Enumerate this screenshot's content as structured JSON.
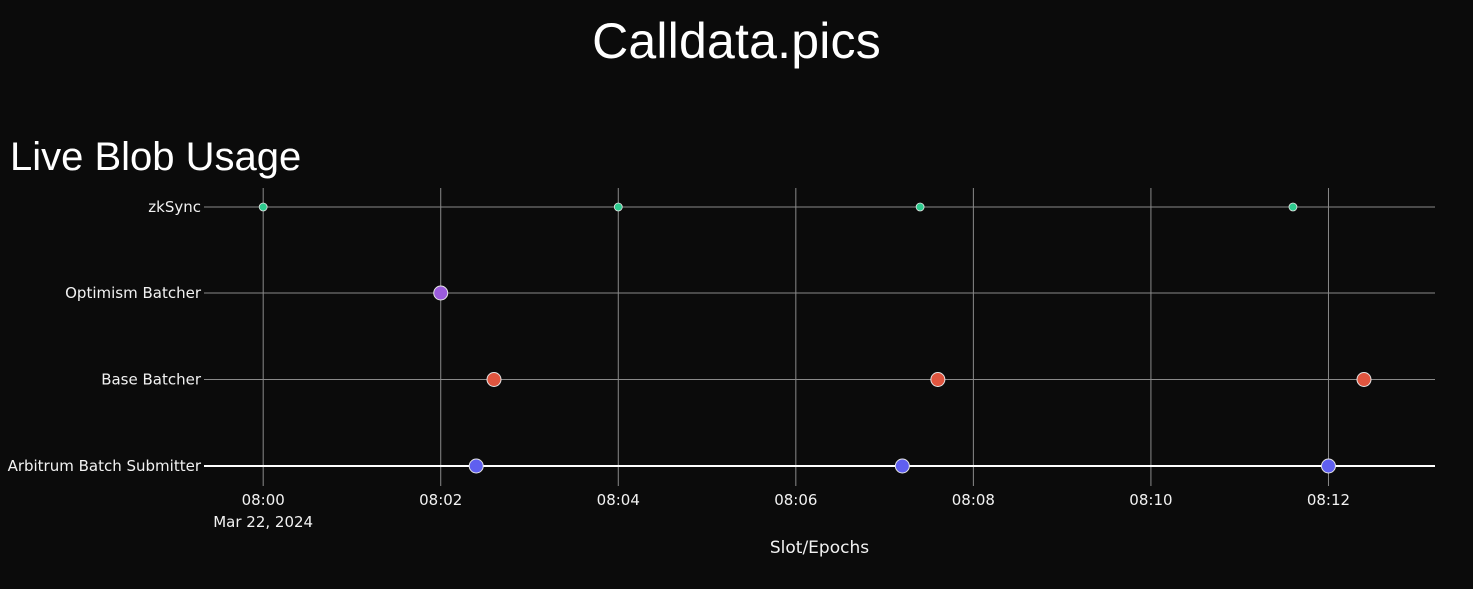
{
  "header": {
    "site_title": "Calldata.pics",
    "section_title": "Live Blob Usage"
  },
  "chart_data": {
    "type": "scatter",
    "title": "Live Blob Usage",
    "xlabel": "Slot/Epochs",
    "ylabel": "",
    "x_axis": {
      "type": "time",
      "range": [
        "2024-03-22 07:59:20",
        "2024-03-22 08:13:12"
      ],
      "tick_values": [
        "2024-03-22 08:00",
        "2024-03-22 08:02",
        "2024-03-22 08:04",
        "2024-03-22 08:06",
        "2024-03-22 08:08",
        "2024-03-22 08:10",
        "2024-03-22 08:12"
      ],
      "tick_labels": [
        "08:00",
        "08:02",
        "08:04",
        "08:06",
        "08:08",
        "08:10",
        "08:12"
      ],
      "first_tick_sublabel": "Mar 22, 2024"
    },
    "categories": [
      "zkSync",
      "Optimism Batcher",
      "Base Batcher",
      "Arbitrum Batch Submitter"
    ],
    "grid": true,
    "series": [
      {
        "name": "zkSync",
        "color": "#2ecc8f",
        "marker": "small",
        "x": [
          "2024-03-22 08:00:00",
          "2024-03-22 08:04:00",
          "2024-03-22 08:07:24",
          "2024-03-22 08:11:36"
        ]
      },
      {
        "name": "Optimism Batcher",
        "color": "#9b5cdc",
        "marker": "large",
        "x": [
          "2024-03-22 08:02:00"
        ]
      },
      {
        "name": "Base Batcher",
        "color": "#e0553f",
        "marker": "large",
        "x": [
          "2024-03-22 08:02:36",
          "2024-03-22 08:07:36",
          "2024-03-22 08:12:24"
        ]
      },
      {
        "name": "Arbitrum Batch Submitter",
        "color": "#5f5ff0",
        "marker": "large",
        "x": [
          "2024-03-22 08:02:24",
          "2024-03-22 08:07:12",
          "2024-03-22 08:12:00"
        ]
      }
    ]
  }
}
